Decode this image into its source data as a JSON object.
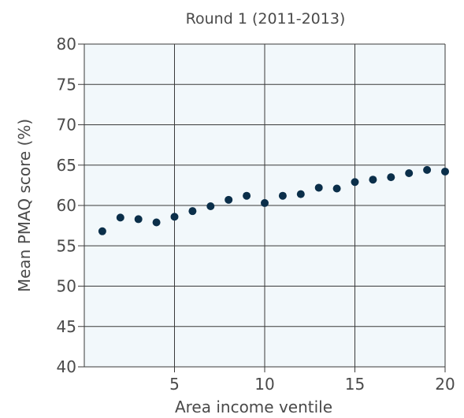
{
  "chart_data": {
    "type": "scatter",
    "title": "Round 1 (2011-2013)",
    "xlabel": "Area income ventile",
    "ylabel": "Mean PMAQ score (%)",
    "xlim": [
      0,
      20
    ],
    "ylim": [
      40,
      80
    ],
    "xticks": [
      5,
      10,
      15,
      20
    ],
    "yticks": [
      40,
      45,
      50,
      55,
      60,
      65,
      70,
      75,
      80
    ],
    "grid": true,
    "colors": {
      "point": "#0b2f4a",
      "plot_background": "#f2f8fb",
      "grid": "#3a3a3a"
    },
    "x": [
      1,
      2,
      3,
      4,
      5,
      6,
      7,
      8,
      9,
      10,
      11,
      12,
      13,
      14,
      15,
      16,
      17,
      18,
      19,
      20
    ],
    "y": [
      56.8,
      58.5,
      58.3,
      57.9,
      58.6,
      59.3,
      59.9,
      60.7,
      61.2,
      60.3,
      61.2,
      61.4,
      62.2,
      62.1,
      62.9,
      63.2,
      63.5,
      64.0,
      64.4,
      64.2
    ]
  }
}
